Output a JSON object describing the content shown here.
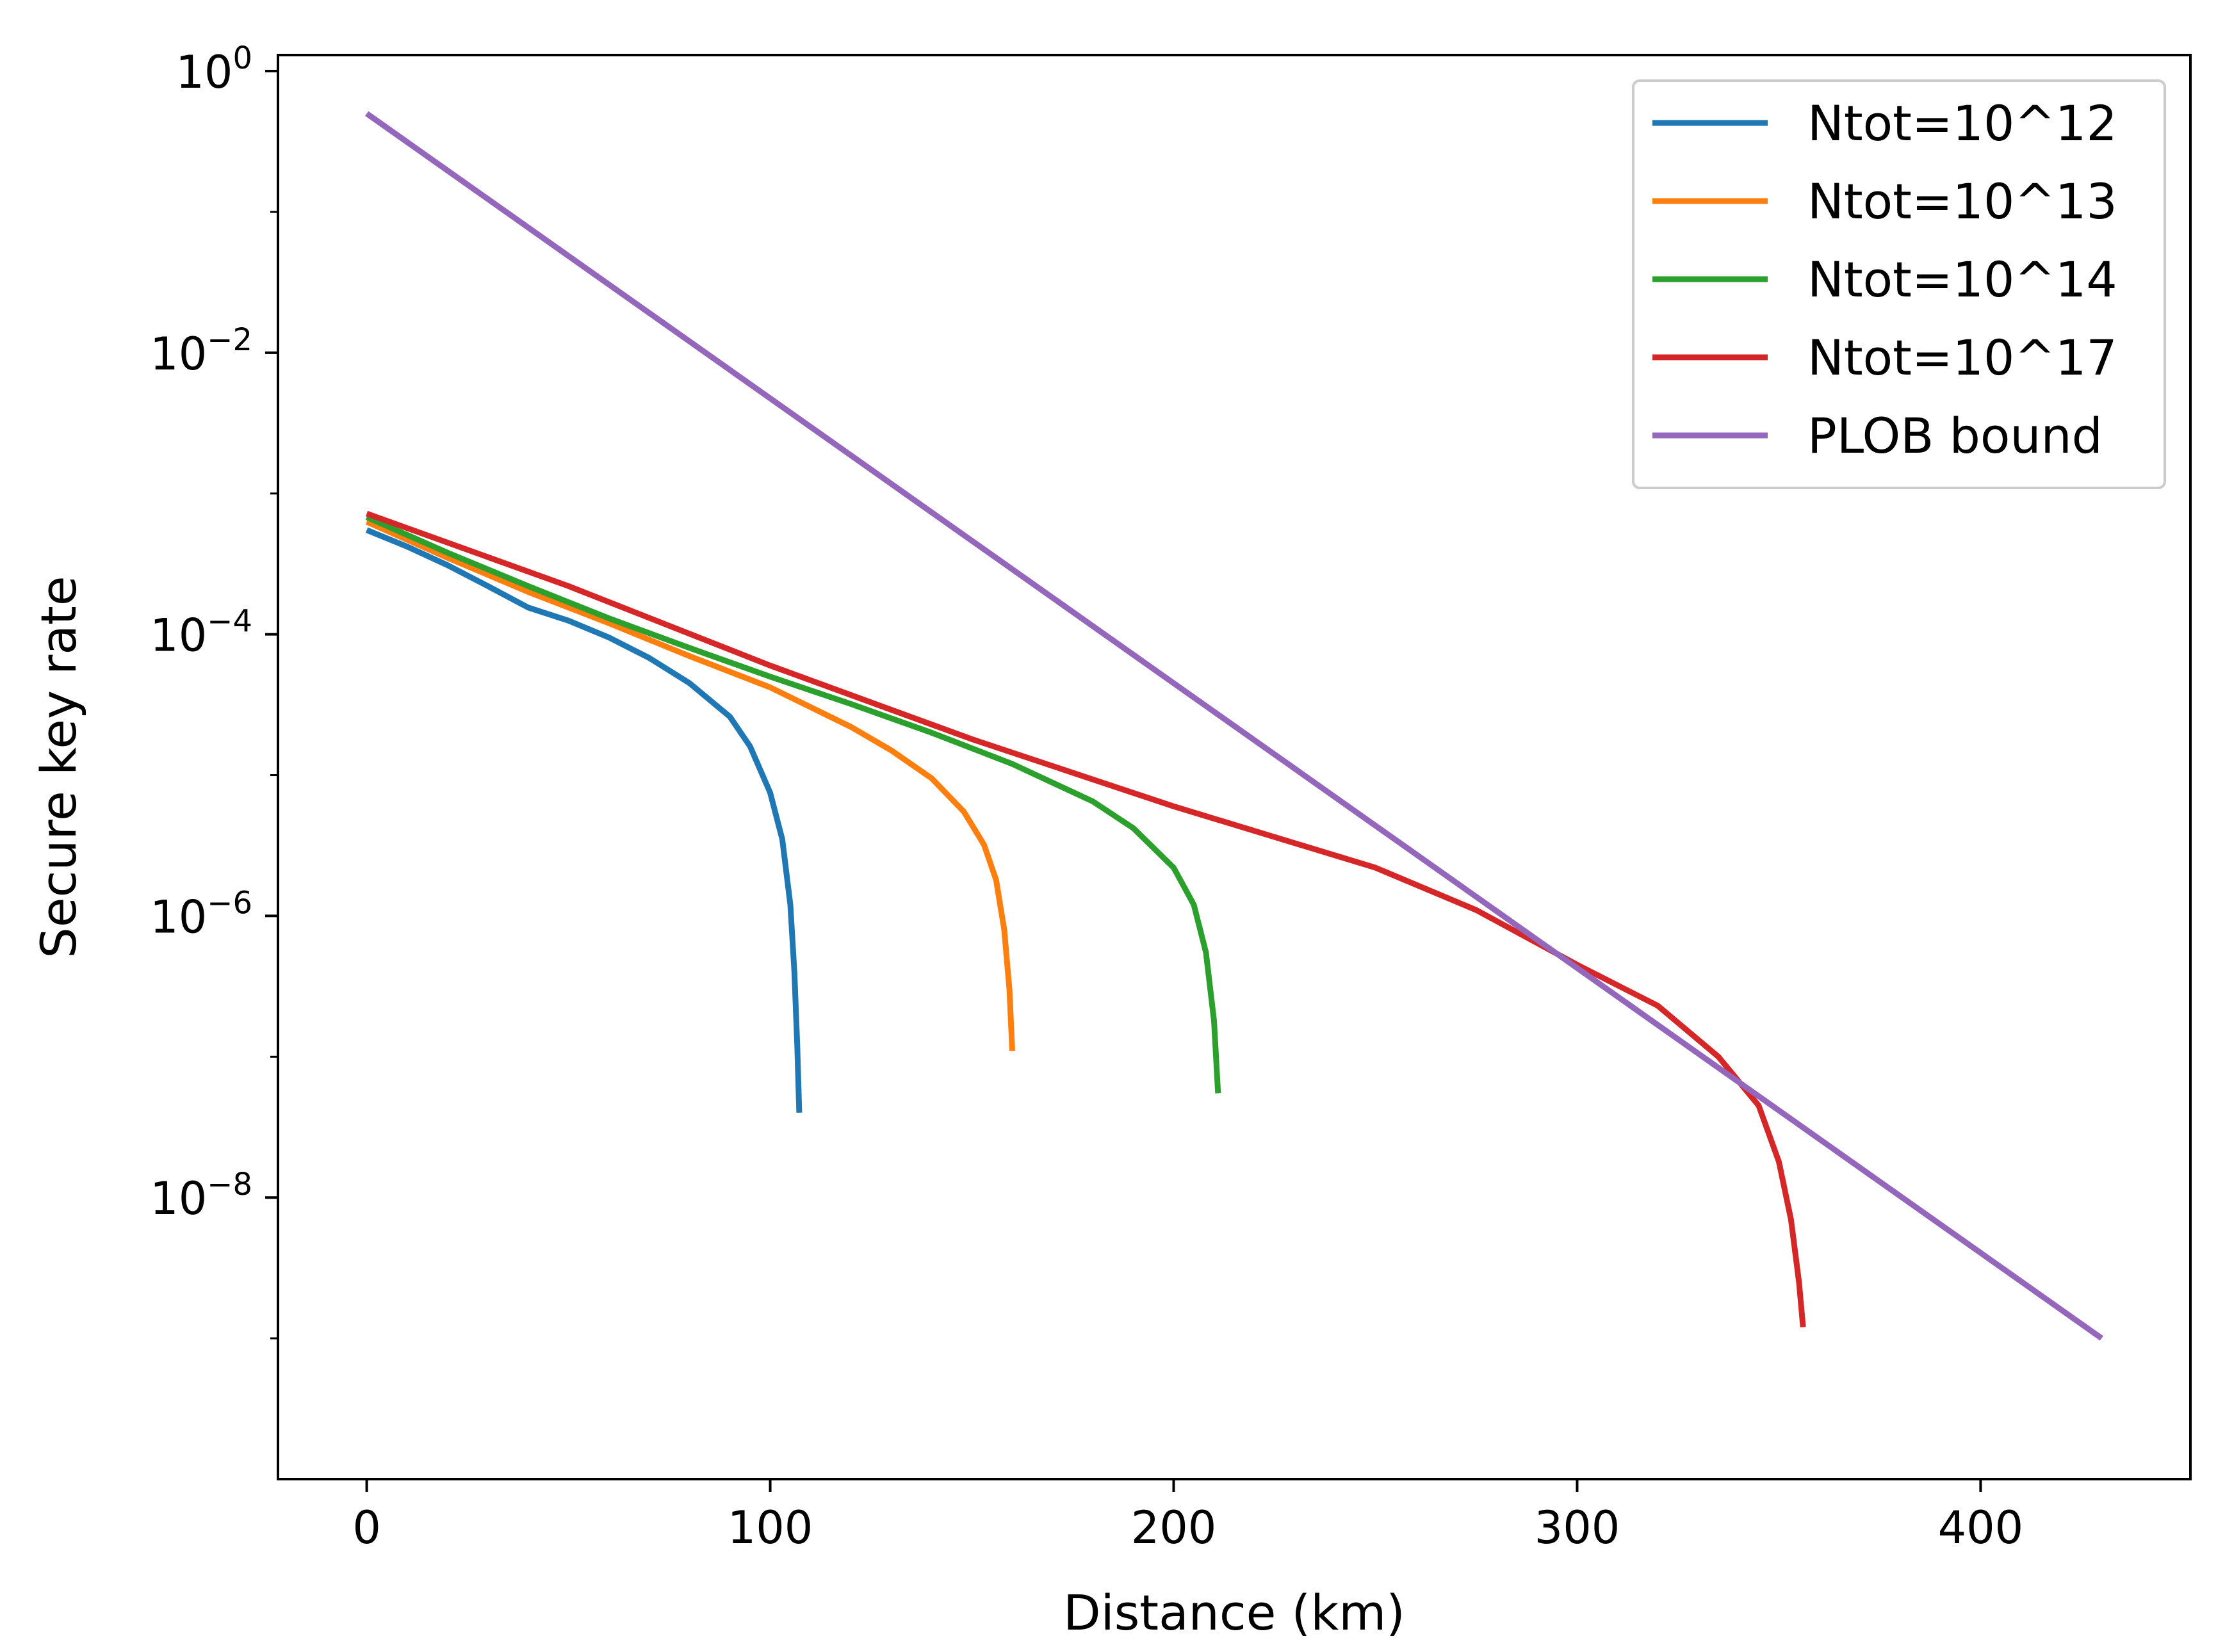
{
  "chart_data": {
    "type": "line",
    "title": "",
    "xlabel": "Distance (km)",
    "ylabel": "Secure key rate",
    "x_scale": "linear",
    "y_scale": "log",
    "xlim": [
      -22,
      452
    ],
    "ylim": [
      1e-10,
      1.3
    ],
    "x_ticks": [
      0,
      100,
      200,
      300,
      400
    ],
    "x_tick_labels": [
      "0",
      "100",
      "200",
      "300",
      "400"
    ],
    "y_ticks": [
      {
        "value": 1,
        "base": "10",
        "exp": "0"
      },
      {
        "value": 0.01,
        "base": "10",
        "exp": "−2"
      },
      {
        "value": 0.0001,
        "base": "10",
        "exp": "−4"
      },
      {
        "value": 1e-06,
        "base": "10",
        "exp": "−6"
      },
      {
        "value": 1e-08,
        "base": "10",
        "exp": "−8"
      }
    ],
    "grid": false,
    "legend_position": "top-right",
    "series": [
      {
        "name": "Ntot=10^12",
        "color": "#1f77b4",
        "points": [
          [
            0,
            0.00055
          ],
          [
            10,
            0.00042
          ],
          [
            20,
            0.00031
          ],
          [
            30,
            0.00022
          ],
          [
            40,
            0.000155
          ],
          [
            50,
            0.000125
          ],
          [
            60,
            9.5e-05
          ],
          [
            70,
            6.8e-05
          ],
          [
            80,
            4.5e-05
          ],
          [
            90,
            2.6e-05
          ],
          [
            95,
            1.6e-05
          ],
          [
            100,
            7.5e-06
          ],
          [
            103,
            3.5e-06
          ],
          [
            105,
            1.2e-06
          ],
          [
            106,
            4e-07
          ],
          [
            106.7,
            1.2e-07
          ],
          [
            107.2,
            4e-08
          ]
        ]
      },
      {
        "name": "Ntot=10^13",
        "color": "#ff7f0e",
        "points": [
          [
            0,
            0.00063
          ],
          [
            20,
            0.00035
          ],
          [
            40,
            0.0002
          ],
          [
            60,
            0.00012
          ],
          [
            80,
            7e-05
          ],
          [
            100,
            4.2e-05
          ],
          [
            120,
            2.2e-05
          ],
          [
            130,
            1.5e-05
          ],
          [
            140,
            9.5e-06
          ],
          [
            148,
            5.5e-06
          ],
          [
            153,
            3.2e-06
          ],
          [
            156,
            1.8e-06
          ],
          [
            158,
            8e-07
          ],
          [
            159.3,
            3e-07
          ],
          [
            160,
            1.1e-07
          ]
        ]
      },
      {
        "name": "Ntot=10^14",
        "color": "#2ca02c",
        "points": [
          [
            0,
            0.00068
          ],
          [
            20,
            0.00038
          ],
          [
            40,
            0.00022
          ],
          [
            60,
            0.00013
          ],
          [
            80,
            8e-05
          ],
          [
            100,
            5e-05
          ],
          [
            120,
            3.2e-05
          ],
          [
            140,
            2e-05
          ],
          [
            160,
            1.2e-05
          ],
          [
            180,
            6.5e-06
          ],
          [
            190,
            4.2e-06
          ],
          [
            200,
            2.2e-06
          ],
          [
            205,
            1.2e-06
          ],
          [
            208,
            5.5e-07
          ],
          [
            210,
            1.8e-07
          ],
          [
            211,
            5.5e-08
          ]
        ]
      },
      {
        "name": "Ntot=10^17",
        "color": "#d62728",
        "points": [
          [
            0,
            0.00072
          ],
          [
            50,
            0.00022
          ],
          [
            100,
            6e-05
          ],
          [
            150,
            1.8e-05
          ],
          [
            200,
            6e-06
          ],
          [
            250,
            2.2e-06
          ],
          [
            275,
            1.1e-06
          ],
          [
            300,
            4.5e-07
          ],
          [
            320,
            2.3e-07
          ],
          [
            335,
            1e-07
          ],
          [
            345,
            4.5e-08
          ],
          [
            350,
            1.8e-08
          ],
          [
            353,
            7e-09
          ],
          [
            355,
            2.5e-09
          ],
          [
            356,
            1.2e-09
          ]
        ]
      },
      {
        "name": "PLOB bound",
        "color": "#9467bd",
        "points": [
          [
            0,
            0.5
          ],
          [
            430,
            1e-09
          ]
        ]
      }
    ]
  }
}
